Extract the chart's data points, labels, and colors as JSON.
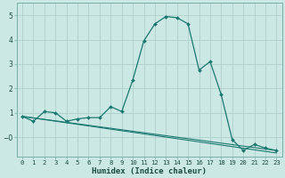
{
  "title": "",
  "xlabel": "Humidex (Indice chaleur)",
  "background_color": "#cce8e4",
  "grid_color": "#aed0cc",
  "line_color": "#1a7870",
  "line1_y": [
    0.85,
    0.65,
    1.05,
    1.0,
    0.65,
    0.75,
    0.8,
    0.8,
    1.25,
    1.05,
    2.35,
    3.95,
    4.65,
    4.95,
    4.9,
    4.65,
    2.75,
    3.1,
    1.75,
    -0.1,
    -0.55,
    -0.3,
    -0.45,
    -0.55
  ],
  "trend1_start": 0.85,
  "trend1_end": -0.65,
  "trend2_start": 0.85,
  "trend2_end": -0.55,
  "ylim": [
    -0.8,
    5.5
  ],
  "xlim": [
    -0.5,
    23.5
  ],
  "yticks": [
    0,
    1,
    2,
    3,
    4,
    5
  ],
  "xticks": [
    0,
    1,
    2,
    3,
    4,
    5,
    6,
    7,
    8,
    9,
    10,
    11,
    12,
    13,
    14,
    15,
    16,
    17,
    18,
    19,
    20,
    21,
    22,
    23
  ],
  "xlabel_fontsize": 6.5,
  "xlabel_fontweight": "bold",
  "tick_fontsize": 5.2,
  "ytick_fontsize": 5.5
}
